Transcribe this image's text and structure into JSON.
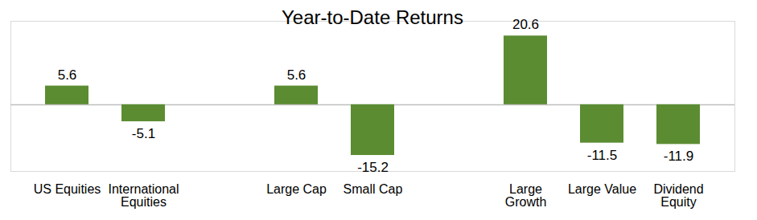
{
  "chart_data": {
    "type": "bar",
    "title": "Year-to-Date Returns",
    "categories": [
      "US Equities",
      "International Equities",
      null,
      "Large Cap",
      "Small Cap",
      null,
      "Large Growth",
      "Large Value",
      "Dividend Equity"
    ],
    "values": [
      5.6,
      -5.1,
      null,
      5.6,
      -15.2,
      null,
      20.6,
      -11.5,
      -11.9
    ],
    "color": "#5b8c32",
    "ylim": [
      -20,
      25
    ],
    "yticks": [
      0
    ],
    "grid": false,
    "data_labels": true,
    "tick_labels": "x"
  }
}
